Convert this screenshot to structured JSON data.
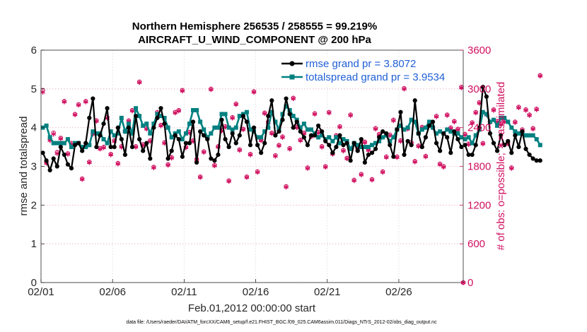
{
  "chart_data": {
    "type": "line",
    "title": "Northern Hemisphere 256535 / 258555 = 99.219%",
    "subtitle": "AIRCRAFT_U_WIND_COMPONENT @ 200 hPa",
    "xlabel": "Feb.01,2012 00:00:00 start",
    "ylabel": "rmse and totalspread",
    "y2label": "# of obs: o=possible; ∗=assimilated",
    "footnote": "data file: /Users/raeder/DAI/ATM_forcXX/CAM6_setup/f.e21.FHIST_BGC.f09_025.CAM6assim.011/Diags_NTrS_2012-02/obs_diag_output.nc",
    "xlim": [
      0,
      29.5
    ],
    "ylim": [
      0,
      6
    ],
    "y2lim": [
      0,
      3600
    ],
    "x_ticks": [
      {
        "value": 0,
        "label": "02/01"
      },
      {
        "value": 5,
        "label": "02/06"
      },
      {
        "value": 10,
        "label": "02/11"
      },
      {
        "value": 15,
        "label": "02/16"
      },
      {
        "value": 20,
        "label": "02/21"
      },
      {
        "value": 25,
        "label": "02/26"
      }
    ],
    "y_ticks": [
      {
        "value": 0,
        "label": "0"
      },
      {
        "value": 1,
        "label": "1"
      },
      {
        "value": 2,
        "label": "2"
      },
      {
        "value": 3,
        "label": "3"
      },
      {
        "value": 4,
        "label": "4"
      },
      {
        "value": 5,
        "label": "5"
      },
      {
        "value": 6,
        "label": "6"
      }
    ],
    "y2_ticks": [
      {
        "value": 0,
        "label": "0"
      },
      {
        "value": 600,
        "label": "600"
      },
      {
        "value": 1200,
        "label": "1200"
      },
      {
        "value": 1800,
        "label": "1800"
      },
      {
        "value": 2400,
        "label": "2400"
      },
      {
        "value": 3000,
        "label": "3000"
      },
      {
        "value": 3600,
        "label": "3600"
      }
    ],
    "grid": true,
    "legend_position": "top-right",
    "x_step": 0.25,
    "x_start": 0.125,
    "series": [
      {
        "name": "rmse grand pr = 3.8072",
        "color": "#000000",
        "marker": "filled-circle",
        "axis": "left",
        "values": [
          3.35,
          3.15,
          2.9,
          3.2,
          3.0,
          3.5,
          3.3,
          3.05,
          2.95,
          3.55,
          3.6,
          3.4,
          3.6,
          4.25,
          4.75,
          3.5,
          3.8,
          4.1,
          4.5,
          3.5,
          3.5,
          4.0,
          3.7,
          3.3,
          4.0,
          3.5,
          4.3,
          3.7,
          3.4,
          3.6,
          3.2,
          4.0,
          4.25,
          4.5,
          4.1,
          3.2,
          3.4,
          3.8,
          3.7,
          3.25,
          3.6,
          3.6,
          4.15,
          3.1,
          3.9,
          3.8,
          3.7,
          3.2,
          3.15,
          3.3,
          4.2,
          3.7,
          3.5,
          3.85,
          3.6,
          3.8,
          4.3,
          4.15,
          3.55,
          4.0,
          3.55,
          3.35,
          3.6,
          4.3,
          4.7,
          3.8,
          3.9,
          4.2,
          4.75,
          4.35,
          4.0,
          4.15,
          3.9,
          3.75,
          3.55,
          3.8,
          3.8,
          4.05,
          3.9,
          3.65,
          3.55,
          3.35,
          3.5,
          3.8,
          3.55,
          3.6,
          3.15,
          3.6,
          3.4,
          3.7,
          3.1,
          3.3,
          3.35,
          3.45,
          3.75,
          3.9,
          3.85,
          3.55,
          3.25,
          3.95,
          4.4,
          3.3,
          3.65,
          3.55,
          4.7,
          3.85,
          3.5,
          3.75,
          4.05,
          4.15,
          3.6,
          3.4,
          3.85,
          3.75,
          3.35,
          3.9,
          3.7,
          3.5,
          3.55,
          3.3,
          3.3,
          3.55,
          4.0,
          5.05,
          4.8,
          3.85,
          3.6,
          3.4,
          3.8,
          3.55,
          3.65,
          3.35,
          3.8,
          3.5,
          3.9,
          3.45,
          3.3,
          3.2,
          3.15,
          3.15
        ]
      },
      {
        "name": "totalspread grand pr = 3.9534",
        "color": "#008080",
        "marker": "filled-square",
        "axis": "left",
        "values": [
          4.0,
          4.05,
          3.75,
          3.6,
          3.6,
          3.6,
          3.6,
          3.7,
          3.5,
          3.6,
          3.6,
          3.5,
          3.5,
          3.55,
          3.9,
          3.85,
          3.85,
          3.7,
          3.6,
          3.9,
          3.8,
          3.85,
          4.25,
          3.9,
          4.1,
          3.85,
          4.5,
          4.3,
          4.05,
          4.1,
          3.85,
          4.1,
          4.35,
          4.3,
          4.25,
          4.0,
          3.75,
          3.85,
          3.9,
          3.7,
          3.85,
          4.1,
          4.45,
          4.45,
          4.15,
          3.95,
          3.75,
          3.85,
          4.0,
          4.0,
          4.35,
          4.35,
          4.0,
          3.95,
          4.0,
          4.3,
          4.35,
          4.4,
          3.95,
          3.9,
          3.75,
          3.75,
          3.9,
          4.0,
          4.4,
          4.15,
          3.95,
          4.35,
          4.55,
          4.45,
          4.3,
          4.2,
          4.0,
          4.1,
          3.95,
          3.95,
          3.85,
          3.75,
          3.8,
          3.7,
          3.75,
          3.65,
          3.75,
          3.6,
          3.7,
          3.65,
          3.45,
          3.6,
          3.55,
          3.5,
          3.5,
          3.5,
          3.55,
          3.6,
          3.65,
          3.75,
          3.8,
          3.65,
          3.75,
          3.95,
          4.05,
          3.95,
          4.0,
          4.2,
          4.15,
          3.85,
          3.95,
          4.0,
          4.15,
          4.0,
          3.85,
          3.9,
          3.85,
          3.95,
          3.9,
          3.85,
          3.85,
          3.75,
          3.7,
          3.75,
          3.6,
          3.8,
          3.95,
          4.4,
          4.35,
          4.15,
          4.2,
          4.05,
          4.25,
          4.25,
          4.15,
          4.0,
          3.9,
          3.85,
          3.85,
          3.8,
          3.8,
          3.8,
          3.7,
          3.55
        ]
      },
      {
        "name": "# of obs assimilated",
        "color": "#d01060",
        "marker": "asterisk",
        "axis": "right",
        "values": [
          2950,
          1850,
          2200,
          2300,
          2000,
          2230,
          2800,
          1990,
          2150,
          2600,
          2750,
          1600,
          2800,
          1860,
          2300,
          2500,
          2070,
          2090,
          2550,
          1980,
          2190,
          1840,
          2100,
          2340,
          2500,
          2660,
          2100,
          3100,
          2130,
          2380,
          2190,
          1780,
          2630,
          2430,
          2160,
          1820,
          1930,
          2630,
          2660,
          2970,
          2090,
          2320,
          2190,
          1900,
          1630,
          2020,
          2240,
          2990,
          1810,
          2100,
          2350,
          2410,
          1570,
          2550,
          2760,
          2050,
          2370,
          1630,
          1980,
          2950,
          1710,
          2200,
          2620,
          2480,
          2310,
          1960,
          2120,
          2250,
          1480,
          2070,
          2850,
          2400,
          2200,
          2310,
          1770,
          2260,
          2610,
          2320,
          2100,
          1790,
          2630,
          1990,
          2270,
          2410,
          2040,
          1920,
          2590,
          1580,
          2060,
          1670,
          2170,
          2050,
          1590,
          2380,
          2290,
          1710,
          1940,
          2280,
          2510,
          1940,
          2190,
          3000,
          2380,
          2160,
          1870,
          2110,
          2400,
          1950,
          2460,
          2400,
          2570,
          1830,
          1790,
          2590,
          2390,
          2490,
          2370,
          3020,
          2290,
          2140,
          2470,
          2630,
          2780,
          2150,
          2600,
          2480,
          2670,
          2490,
          2450,
          2490,
          2150,
          1770,
          2480,
          2710,
          2360,
          2670,
          2590,
          2380,
          2680,
          3200
        ]
      },
      {
        "name": "# of obs possible",
        "color": "#d01060",
        "marker": "open-circle",
        "axis": "right",
        "values": [
          2980,
          1860,
          2220,
          2320,
          2020,
          2240,
          2810,
          2000,
          2160,
          2610,
          2760,
          1610,
          2810,
          1870,
          2310,
          2510,
          2080,
          2100,
          2560,
          1990,
          2200,
          1850,
          2110,
          2350,
          2510,
          2670,
          2110,
          3110,
          2140,
          2390,
          2200,
          1790,
          2640,
          2440,
          2170,
          1830,
          1940,
          2640,
          2670,
          2980,
          2100,
          2330,
          2200,
          1910,
          1640,
          2030,
          2250,
          3000,
          1820,
          2110,
          2360,
          2420,
          1580,
          2560,
          2770,
          2060,
          2380,
          1640,
          1990,
          2960,
          1720,
          2210,
          2630,
          2490,
          2320,
          1970,
          2130,
          2260,
          1490,
          2080,
          2860,
          2410,
          2210,
          2320,
          1780,
          2270,
          2620,
          2330,
          2110,
          1800,
          2640,
          2000,
          2280,
          2420,
          2050,
          1930,
          2600,
          1590,
          2070,
          1680,
          2180,
          2060,
          1600,
          2390,
          2300,
          1720,
          1950,
          2290,
          2520,
          1950,
          2200,
          3010,
          2390,
          2170,
          1880,
          2120,
          2410,
          1960,
          2470,
          2410,
          2580,
          1840,
          1800,
          2600,
          2400,
          2500,
          2380,
          3030,
          2300,
          2150,
          2480,
          2640,
          2790,
          2160,
          2610,
          2490,
          2680,
          2500,
          2460,
          2500,
          2160,
          1780,
          2490,
          2720,
          2370,
          2680,
          2600,
          2390,
          2690,
          3210
        ]
      }
    ],
    "extra_points": [
      {
        "x": 29.5,
        "y2": 0,
        "label_ref": "assimilated-at-end"
      }
    ]
  }
}
